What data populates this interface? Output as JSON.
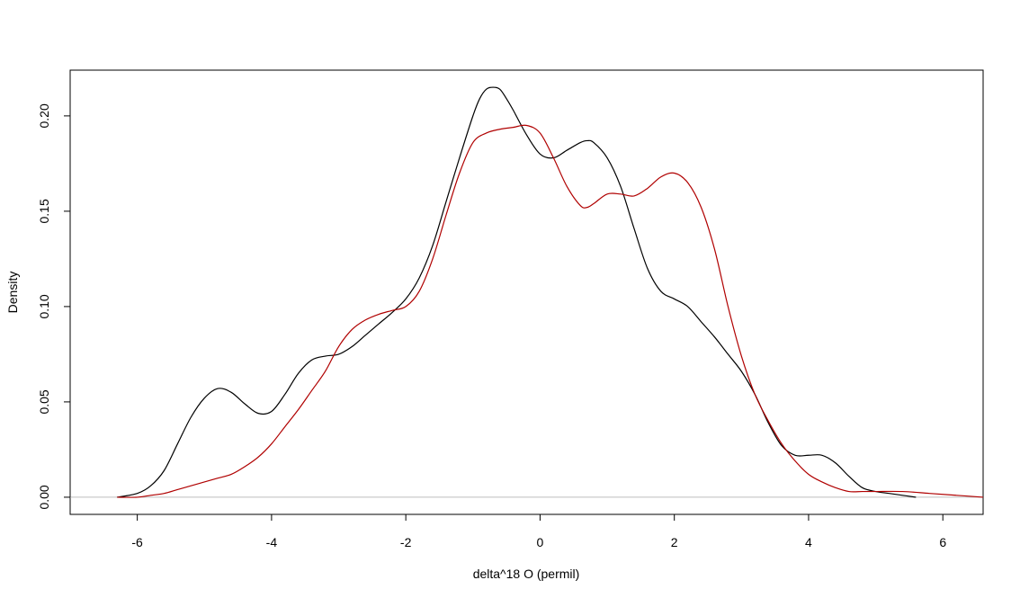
{
  "chart_data": {
    "type": "line",
    "title": "",
    "xlabel": "delta^18 O (permil)",
    "ylabel": "Density",
    "xlim": [
      -7.0,
      6.6
    ],
    "ylim": [
      -0.009,
      0.224
    ],
    "x_ticks": [
      -6,
      -4,
      -2,
      0,
      2,
      4,
      6
    ],
    "x_tick_labels": [
      "-6",
      "-4",
      "-2",
      "0",
      "2",
      "4",
      "6"
    ],
    "y_ticks": [
      0.0,
      0.05,
      0.1,
      0.15,
      0.2
    ],
    "y_tick_labels": [
      "0.00",
      "0.05",
      "0.10",
      "0.15",
      "0.20"
    ],
    "grid": false,
    "baseline": 0,
    "series": [
      {
        "color": "#000000",
        "x": [
          -6.3,
          -6.0,
          -5.8,
          -5.6,
          -5.4,
          -5.2,
          -5.0,
          -4.8,
          -4.6,
          -4.4,
          -4.2,
          -4.0,
          -3.8,
          -3.6,
          -3.4,
          -3.2,
          -3.0,
          -2.8,
          -2.6,
          -2.4,
          -2.2,
          -2.0,
          -1.8,
          -1.6,
          -1.4,
          -1.2,
          -1.0,
          -0.9,
          -0.8,
          -0.7,
          -0.6,
          -0.5,
          -0.4,
          -0.2,
          0.0,
          0.2,
          0.4,
          0.6,
          0.7,
          0.8,
          1.0,
          1.2,
          1.4,
          1.6,
          1.8,
          2.0,
          2.2,
          2.4,
          2.6,
          2.8,
          3.0,
          3.2,
          3.4,
          3.6,
          3.8,
          4.0,
          4.2,
          4.4,
          4.6,
          4.8,
          5.0,
          5.2,
          5.4,
          5.6
        ],
        "y": [
          0.0,
          0.002,
          0.006,
          0.014,
          0.028,
          0.042,
          0.052,
          0.057,
          0.055,
          0.049,
          0.044,
          0.045,
          0.054,
          0.065,
          0.072,
          0.074,
          0.075,
          0.079,
          0.085,
          0.091,
          0.097,
          0.104,
          0.115,
          0.132,
          0.155,
          0.178,
          0.2,
          0.209,
          0.214,
          0.215,
          0.214,
          0.209,
          0.203,
          0.19,
          0.18,
          0.178,
          0.182,
          0.186,
          0.187,
          0.186,
          0.178,
          0.163,
          0.141,
          0.12,
          0.108,
          0.104,
          0.1,
          0.092,
          0.084,
          0.075,
          0.066,
          0.054,
          0.039,
          0.027,
          0.022,
          0.022,
          0.022,
          0.018,
          0.011,
          0.005,
          0.003,
          0.002,
          0.001,
          0.0
        ]
      },
      {
        "color": "#b00000",
        "x": [
          -6.3,
          -6.0,
          -5.8,
          -5.6,
          -5.4,
          -5.2,
          -5.0,
          -4.8,
          -4.6,
          -4.4,
          -4.2,
          -4.0,
          -3.8,
          -3.6,
          -3.4,
          -3.2,
          -3.0,
          -2.8,
          -2.6,
          -2.4,
          -2.2,
          -2.0,
          -1.8,
          -1.6,
          -1.4,
          -1.2,
          -1.0,
          -0.8,
          -0.6,
          -0.4,
          -0.2,
          0.0,
          0.2,
          0.4,
          0.6,
          0.7,
          0.8,
          1.0,
          1.2,
          1.4,
          1.6,
          1.8,
          2.0,
          2.2,
          2.4,
          2.6,
          2.8,
          3.0,
          3.2,
          3.4,
          3.6,
          3.8,
          4.0,
          4.2,
          4.4,
          4.6,
          4.8,
          5.0,
          5.4,
          5.8,
          6.2,
          6.6
        ],
        "y": [
          0.0,
          0.0,
          0.001,
          0.002,
          0.004,
          0.006,
          0.008,
          0.01,
          0.012,
          0.016,
          0.021,
          0.028,
          0.037,
          0.046,
          0.056,
          0.066,
          0.079,
          0.088,
          0.093,
          0.096,
          0.098,
          0.1,
          0.108,
          0.125,
          0.148,
          0.17,
          0.186,
          0.191,
          0.193,
          0.194,
          0.195,
          0.191,
          0.178,
          0.163,
          0.153,
          0.152,
          0.154,
          0.159,
          0.159,
          0.158,
          0.162,
          0.168,
          0.17,
          0.165,
          0.152,
          0.13,
          0.1,
          0.074,
          0.054,
          0.04,
          0.028,
          0.019,
          0.012,
          0.008,
          0.005,
          0.003,
          0.003,
          0.003,
          0.003,
          0.002,
          0.001,
          0.0
        ]
      }
    ]
  }
}
